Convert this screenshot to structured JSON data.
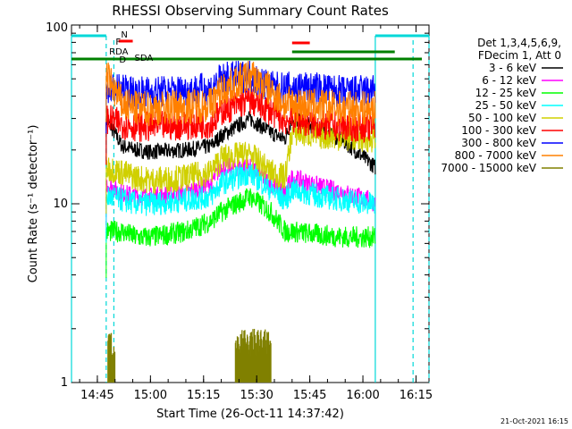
{
  "chart_data": {
    "type": "line",
    "title": "RHESSI Observing Summary Count Rates",
    "xlabel": "Start Time (26-Oct-11 14:37:42)",
    "ylabel": "Count Rate (s⁻¹ detector⁻¹)",
    "y_scale": "log",
    "ylim": [
      1,
      100
    ],
    "xlim": [
      "14:37:42",
      "16:18:40"
    ],
    "x_ticks": [
      "14:45",
      "15:00",
      "15:15",
      "15:30",
      "15:45",
      "16:00",
      "16:15"
    ],
    "y_ticks": [
      "1",
      "10",
      "100"
    ],
    "legend_header": [
      "Det 1,3,4,5,6,9,",
      "FDecim 1, Att 0"
    ],
    "legend_placement": "right",
    "footer_date": "21-Oct-2021 16:15",
    "flags": [
      {
        "label": "F",
        "color": "#ff0000"
      },
      {
        "label": "N",
        "color": "#00d8d8"
      },
      {
        "label": "RDA",
        "color": "#008000"
      },
      {
        "label": "SDA",
        "color": "#008000"
      },
      {
        "label": "D",
        "color": "#000000"
      }
    ],
    "data_gaps": [
      [
        "14:37:42",
        "14:47:30"
      ],
      [
        "16:03:30",
        "16:18:40"
      ]
    ],
    "series": [
      {
        "name": "3 - 6 keV",
        "color": "#000000",
        "x": [
          "14:47:30",
          "14:52",
          "14:56",
          "15:00",
          "15:10",
          "15:17",
          "15:20",
          "15:28",
          "15:34",
          "15:38",
          "15:40",
          "15:48",
          "15:55",
          "16:02",
          "16:03:30"
        ],
        "values": [
          30,
          21,
          20,
          19.5,
          20,
          21,
          24,
          30,
          25,
          23,
          30,
          26,
          22,
          17,
          16
        ]
      },
      {
        "name": "6 - 12 keV",
        "color": "#ff00ff",
        "x": [
          "14:47:30",
          "14:52",
          "14:56",
          "15:00",
          "15:10",
          "15:17",
          "15:20",
          "15:28",
          "15:34",
          "15:38",
          "15:40",
          "15:48",
          "15:55",
          "16:02",
          "16:03:30"
        ],
        "values": [
          13,
          11.5,
          11,
          11,
          11.5,
          13,
          16,
          16,
          13,
          11.5,
          14,
          12.5,
          11.5,
          10.5,
          10
        ]
      },
      {
        "name": "12 - 25 keV",
        "color": "#00ff00",
        "x": [
          "14:47:30",
          "14:52",
          "14:56",
          "15:00",
          "15:10",
          "15:17",
          "15:20",
          "15:28",
          "15:34",
          "15:38",
          "15:40",
          "15:48",
          "15:55",
          "16:02",
          "16:03:30"
        ],
        "values": [
          7,
          7,
          6.5,
          6.5,
          7,
          8,
          9,
          11,
          9,
          7,
          7,
          6.7,
          6.5,
          6.5,
          6.5
        ]
      },
      {
        "name": "25 - 50 keV",
        "color": "#00ffff",
        "x": [
          "14:47:30",
          "14:52",
          "14:56",
          "15:00",
          "15:10",
          "15:17",
          "15:20",
          "15:28",
          "15:34",
          "15:38",
          "15:40",
          "15:48",
          "15:55",
          "16:02",
          "16:03:30"
        ],
        "values": [
          11,
          10.5,
          10,
          10,
          10.5,
          11,
          13,
          15,
          12,
          10.5,
          12,
          11,
          10.5,
          10,
          10
        ]
      },
      {
        "name": "50 - 100 keV",
        "color": "#d0d000",
        "x": [
          "14:47:30",
          "14:52",
          "14:56",
          "15:00",
          "15:10",
          "15:17",
          "15:20",
          "15:28",
          "15:34",
          "15:38",
          "15:40",
          "15:48",
          "15:55",
          "16:02",
          "16:03:30"
        ],
        "values": [
          16,
          15,
          14,
          13.5,
          14,
          15,
          18,
          19,
          15,
          14,
          25,
          24,
          23.5,
          23,
          23
        ]
      },
      {
        "name": "100 - 300 keV",
        "color": "#ff0000",
        "x": [
          "14:47:30",
          "14:52",
          "14:56",
          "15:00",
          "15:10",
          "15:17",
          "15:20",
          "15:28",
          "15:34",
          "15:38",
          "15:40",
          "15:48",
          "15:55",
          "16:02",
          "16:03:30"
        ],
        "values": [
          30,
          28,
          27,
          27,
          27.5,
          28,
          33,
          38,
          33,
          29,
          30,
          27.5,
          27,
          27,
          27
        ]
      },
      {
        "name": "300 - 800 keV",
        "color": "#0000ff",
        "x": [
          "14:47:30",
          "14:52",
          "14:56",
          "15:00",
          "15:10",
          "15:17",
          "15:20",
          "15:28",
          "15:34",
          "15:38",
          "15:40",
          "15:48",
          "15:55",
          "16:02",
          "16:03:30"
        ],
        "values": [
          45,
          43,
          42,
          42,
          43,
          44,
          50,
          52,
          45,
          44,
          45,
          44,
          42,
          43,
          43
        ]
      },
      {
        "name": "800 - 7000 keV",
        "color": "#ff8000",
        "x": [
          "14:47:30",
          "14:52",
          "14:56",
          "15:00",
          "15:10",
          "15:17",
          "15:20",
          "15:28",
          "15:34",
          "15:38",
          "15:40",
          "15:48",
          "15:55",
          "16:02",
          "16:03:30"
        ],
        "values": [
          52,
          36,
          34,
          34,
          35,
          36,
          43,
          52,
          43,
          36,
          36,
          35,
          34,
          34,
          34
        ]
      },
      {
        "name": "7000 - 15000 keV",
        "color": "#808000",
        "x": [
          "14:48",
          "14:49",
          "14:50",
          "15:24",
          "15:26",
          "15:28",
          "15:30",
          "15:32",
          "15:34"
        ],
        "values": [
          2,
          1.6,
          2,
          2,
          2,
          2,
          2,
          2,
          2
        ]
      }
    ]
  }
}
